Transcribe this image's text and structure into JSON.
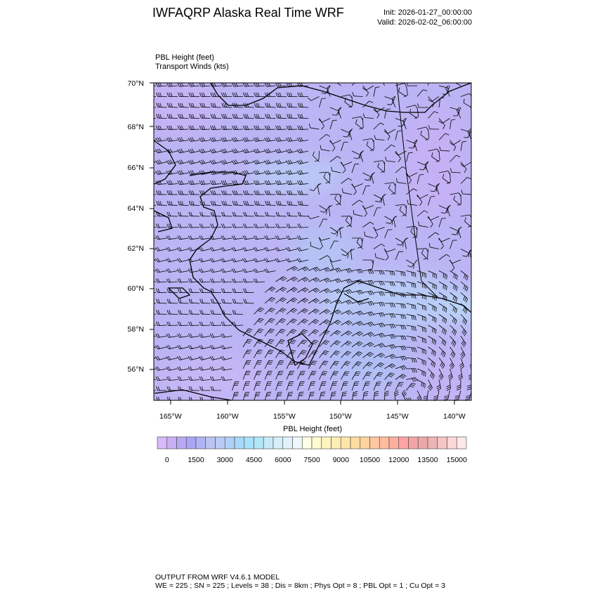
{
  "header": {
    "title": "IWFAQRP Alaska Real Time WRF",
    "init": "Init: 2026-01-27_00:00:00",
    "valid": "Valid: 2026-02-02_06:00:00"
  },
  "fields": {
    "field1": "PBL Height   (feet)",
    "field2": "Transport Winds   (kts)"
  },
  "map": {
    "lat_labels": [
      "70°N",
      "68°N",
      "66°N",
      "64°N",
      "62°N",
      "60°N",
      "58°N",
      "56°N"
    ],
    "lon_labels": [
      "165°W",
      "160°W",
      "155°W",
      "150°W",
      "145°W",
      "140°W"
    ],
    "background_color": "#bcb4f4"
  },
  "colorbar": {
    "title": "PBL Height  (feet)",
    "labels": [
      "0",
      "1500",
      "3000",
      "4500",
      "6000",
      "7500",
      "9000",
      "10500",
      "12000",
      "13500",
      "15000"
    ],
    "colors": [
      "#d8b8f8",
      "#c8b0f6",
      "#b8a8f6",
      "#aaa6f4",
      "#b0b4f4",
      "#bcc4f2",
      "#b8ccf6",
      "#b0d0f8",
      "#a8d8fa",
      "#a8e0fa",
      "#b0e6f8",
      "#c8eaf8",
      "#d6eef8",
      "#e2f2fa",
      "#eef8fc",
      "#fffee6",
      "#fffad0",
      "#fff4c0",
      "#ffeeb4",
      "#ffe6a8",
      "#ffdca0",
      "#ffd2a0",
      "#ffc8a0",
      "#ffbca0",
      "#ffaea0",
      "#ffa4a4",
      "#f4a4a8",
      "#eca8a8",
      "#ecb4b4",
      "#f6c4c4",
      "#fcd8d8",
      "#fee8e8"
    ]
  },
  "footer": {
    "line1": "OUTPUT FROM WRF V4.6.1 MODEL",
    "line2": "WE = 225 ; SN = 225 ; Levels = 38 ; Dis = 8km ; Phys Opt = 8 ; PBL Opt = 1 ; Cu Opt = 3"
  }
}
